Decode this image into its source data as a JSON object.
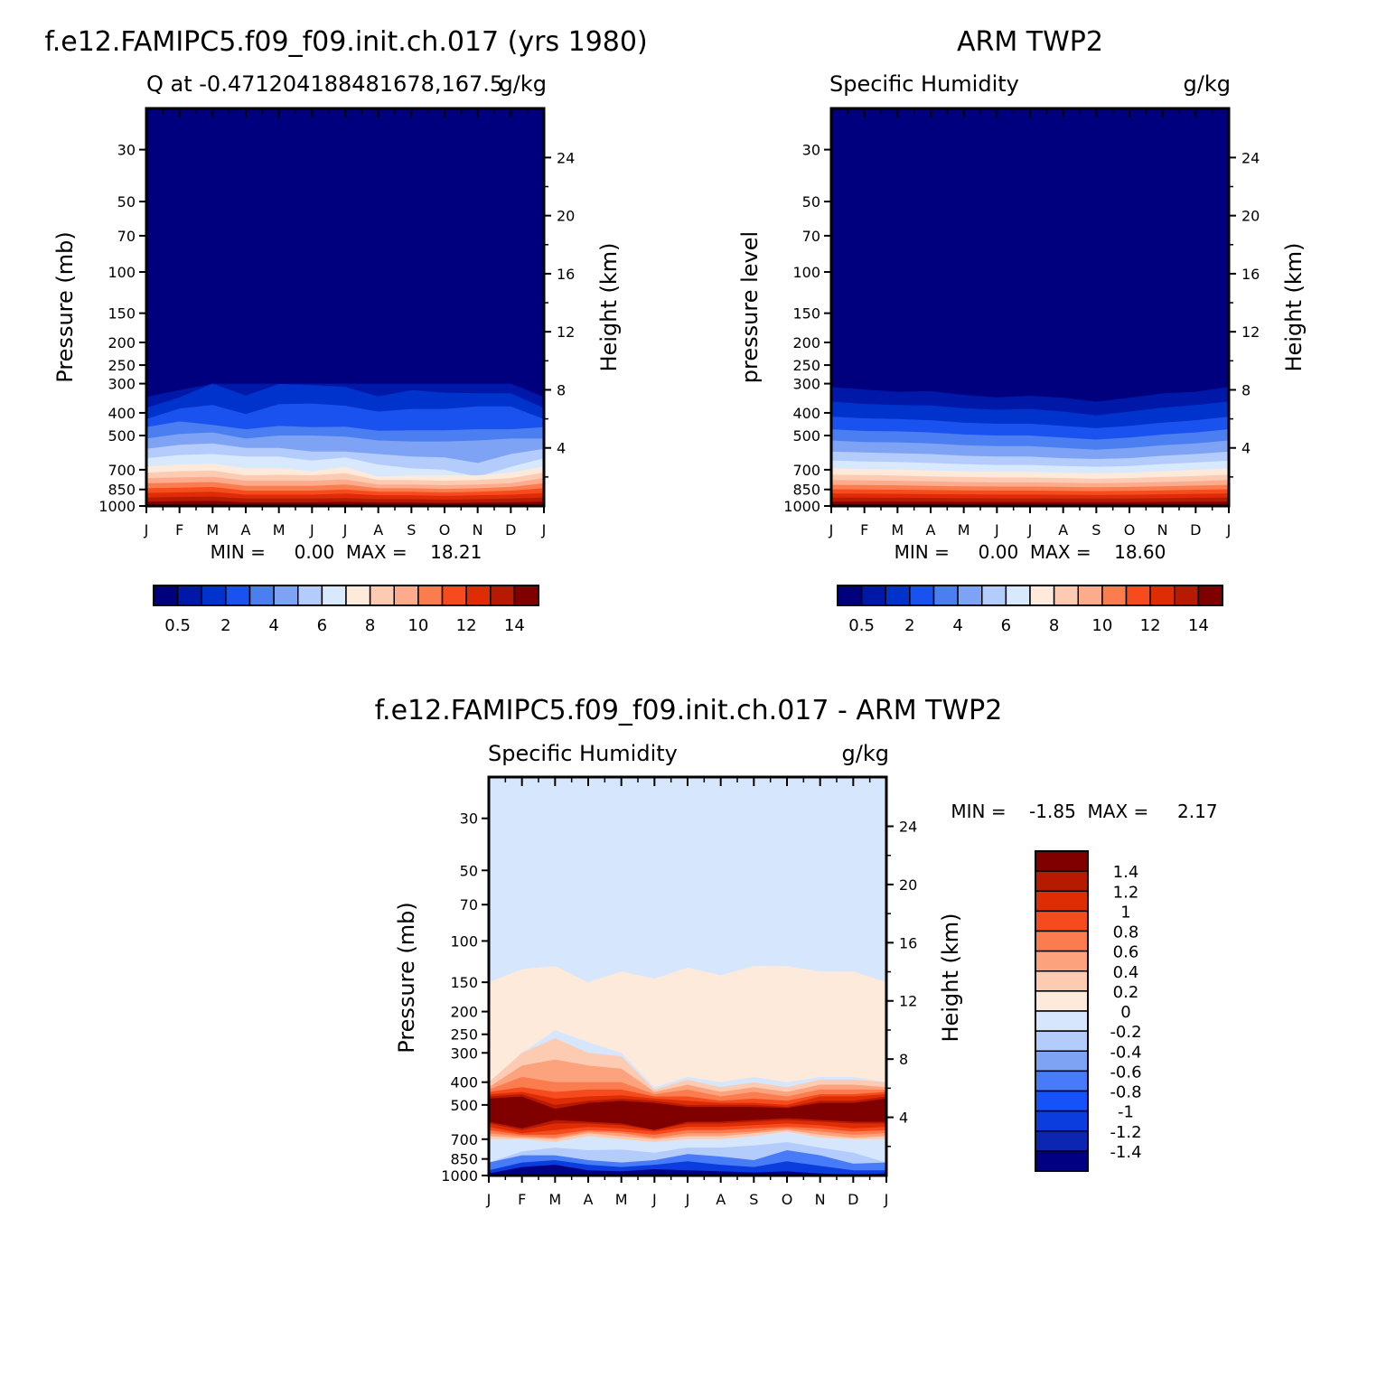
{
  "colors": {
    "levels_seq": [
      "#00007f",
      "#0018a8",
      "#0033cc",
      "#1a52f0",
      "#4b7ef0",
      "#7ea3f5",
      "#b4ccfb",
      "#d8e8fd",
      "#feeadb",
      "#fdcbb2",
      "#fcab8d",
      "#fb7c4e",
      "#f64b1e",
      "#de2c05",
      "#b71a02",
      "#800000"
    ],
    "levels_diff": [
      "#000080",
      "#0c26b2",
      "#0b3cde",
      "#1552fa",
      "#477bf7",
      "#7ea3f5",
      "#b4ccfb",
      "#d6e7fd",
      "#feeadb",
      "#fdcbb2",
      "#fca27d",
      "#fb7c4e",
      "#f64b1e",
      "#de2c05",
      "#b71a02",
      "#800000"
    ]
  },
  "panel_left": {
    "title": "f.e12.FAMIPC5.f09_f09.init.ch.017 (yrs 1980)",
    "subtitle_left": "Q at -0.471204188481678,167.5",
    "subtitle_right": "g/kg",
    "ylabel": "Pressure (mb)",
    "ylabel_right": "Height (km)",
    "stats": "MIN =     0.00  MAX =    18.21"
  },
  "panel_right": {
    "title": "ARM TWP2",
    "subtitle_left": "Specific Humidity",
    "subtitle_right": "g/kg",
    "ylabel": "pressure level",
    "ylabel_right": "Height (km)",
    "stats": "MIN =     0.00  MAX =    18.60"
  },
  "panel_diff": {
    "title": "f.e12.FAMIPC5.f09_f09.init.ch.017 - ARM TWP2",
    "subtitle_left": "Specific Humidity",
    "subtitle_right": "g/kg",
    "ylabel": "Pressure (mb)",
    "ylabel_right": "Height (km)",
    "stats": "MIN =    -1.85  MAX =     2.17"
  },
  "chart_data": [
    {
      "type": "heatmap",
      "title": "f.e12.FAMIPC5.f09_f09.init.ch.017 (yrs 1980)",
      "subtitle": "Q at -0.471204188481678,167.5",
      "units": "g/kg",
      "x": [
        "J",
        "F",
        "M",
        "A",
        "M",
        "J",
        "J",
        "A",
        "S",
        "O",
        "N",
        "D",
        "J"
      ],
      "pressure_ticks": [
        30,
        50,
        70,
        100,
        150,
        200,
        250,
        300,
        400,
        500,
        700,
        850,
        1000
      ],
      "height_ticks_km": [
        4,
        8,
        12,
        16,
        20,
        24
      ],
      "ylim_mb": [
        20,
        1000
      ],
      "ylabel": "Pressure (mb)",
      "ylabel_right": "Height (km)",
      "levels": [
        0.5,
        1,
        2,
        3,
        4,
        5,
        6,
        7,
        8,
        9,
        10,
        11,
        12,
        13,
        14
      ],
      "colorbar_labels": [
        "0.5",
        "2",
        "4",
        "6",
        "8",
        "10",
        "12",
        "14"
      ],
      "min": 0.0,
      "max": 18.21,
      "contour_pressure_mb": [
        [
          342,
          320,
          300,
          300,
          300,
          300,
          300,
          300,
          300,
          300,
          300,
          300,
          342
        ],
        [
          381,
          343,
          300,
          337,
          301,
          304,
          310,
          340,
          320,
          328,
          330,
          330,
          381
        ],
        [
          425,
          383,
          370,
          405,
          367,
          365,
          373,
          395,
          385,
          385,
          375,
          375,
          425
        ],
        [
          460,
          435,
          450,
          470,
          455,
          460,
          458,
          477,
          475,
          475,
          470,
          470,
          460
        ],
        [
          515,
          492,
          485,
          515,
          500,
          500,
          505,
          525,
          530,
          530,
          525,
          515,
          515
        ],
        [
          570,
          548,
          540,
          565,
          565,
          585,
          585,
          600,
          615,
          620,
          655,
          600,
          570
        ],
        [
          625,
          605,
          600,
          615,
          615,
          640,
          620,
          665,
          690,
          700,
          750,
          680,
          625
        ],
        [
          678,
          665,
          660,
          690,
          690,
          710,
          680,
          750,
          740,
          740,
          740,
          720,
          678
        ],
        [
          720,
          710,
          705,
          740,
          735,
          740,
          725,
          775,
          775,
          780,
          775,
          760,
          720
        ],
        [
          760,
          755,
          750,
          780,
          780,
          780,
          770,
          810,
          810,
          815,
          810,
          800,
          760
        ],
        [
          800,
          795,
          790,
          820,
          820,
          820,
          810,
          840,
          840,
          845,
          840,
          830,
          800
        ],
        [
          840,
          835,
          830,
          860,
          860,
          860,
          850,
          870,
          870,
          875,
          870,
          860,
          840
        ],
        [
          880,
          875,
          870,
          895,
          895,
          895,
          885,
          900,
          900,
          905,
          900,
          895,
          880
        ],
        [
          920,
          915,
          912,
          930,
          930,
          930,
          925,
          935,
          935,
          940,
          935,
          930,
          920
        ],
        [
          958,
          955,
          952,
          965,
          965,
          965,
          960,
          968,
          968,
          970,
          968,
          965,
          958
        ]
      ]
    },
    {
      "type": "heatmap",
      "title": "ARM TWP2",
      "subtitle": "Specific Humidity",
      "units": "g/kg",
      "x": [
        "J",
        "F",
        "M",
        "A",
        "M",
        "J",
        "J",
        "A",
        "S",
        "O",
        "N",
        "D",
        "J"
      ],
      "pressure_ticks": [
        30,
        50,
        70,
        100,
        150,
        200,
        250,
        300,
        400,
        500,
        700,
        850,
        1000
      ],
      "height_ticks_km": [
        4,
        8,
        12,
        16,
        20,
        24
      ],
      "ylim_mb": [
        20,
        1000
      ],
      "ylabel": "pressure level",
      "ylabel_right": "Height (km)",
      "levels": [
        0.5,
        1,
        2,
        3,
        4,
        5,
        6,
        7,
        8,
        9,
        10,
        11,
        12,
        13,
        14
      ],
      "colorbar_labels": [
        "0.5",
        "2",
        "4",
        "6",
        "8",
        "10",
        "12",
        "14"
      ],
      "min": 0.0,
      "max": 18.6,
      "contour_pressure_mb": [
        [
          310,
          318,
          325,
          323,
          335,
          343,
          338,
          345,
          358,
          345,
          330,
          325,
          310
        ],
        [
          358,
          366,
          370,
          372,
          382,
          388,
          385,
          395,
          410,
          395,
          380,
          370,
          358
        ],
        [
          415,
          422,
          425,
          430,
          440,
          445,
          445,
          455,
          465,
          455,
          440,
          430,
          415
        ],
        [
          470,
          478,
          480,
          485,
          495,
          500,
          500,
          510,
          520,
          510,
          495,
          485,
          470
        ],
        [
          525,
          533,
          535,
          540,
          550,
          555,
          555,
          565,
          575,
          565,
          550,
          540,
          525
        ],
        [
          585,
          590,
          595,
          600,
          610,
          615,
          615,
          625,
          630,
          625,
          610,
          600,
          585
        ],
        [
          640,
          645,
          648,
          655,
          662,
          668,
          668,
          675,
          680,
          675,
          662,
          652,
          640
        ],
        [
          690,
          695,
          698,
          705,
          710,
          715,
          715,
          720,
          725,
          720,
          710,
          700,
          690
        ],
        [
          735,
          738,
          742,
          748,
          752,
          756,
          756,
          760,
          765,
          760,
          752,
          745,
          735
        ],
        [
          775,
          778,
          780,
          785,
          790,
          793,
          793,
          796,
          800,
          796,
          790,
          784,
          775
        ],
        [
          812,
          814,
          816,
          820,
          824,
          826,
          826,
          829,
          832,
          829,
          824,
          818,
          812
        ],
        [
          848,
          850,
          852,
          855,
          858,
          860,
          860,
          862,
          864,
          862,
          858,
          853,
          848
        ],
        [
          885,
          886,
          888,
          890,
          892,
          894,
          894,
          896,
          898,
          896,
          892,
          888,
          885
        ],
        [
          920,
          921,
          922,
          924,
          926,
          928,
          928,
          929,
          930,
          929,
          926,
          922,
          920
        ],
        [
          958,
          958,
          959,
          960,
          961,
          962,
          962,
          963,
          963,
          963,
          961,
          960,
          958
        ]
      ]
    },
    {
      "type": "heatmap",
      "title": "f.e12.FAMIPC5.f09_f09.init.ch.017 - ARM TWP2",
      "subtitle": "Specific Humidity",
      "units": "g/kg",
      "x": [
        "J",
        "F",
        "M",
        "A",
        "M",
        "J",
        "J",
        "A",
        "S",
        "O",
        "N",
        "D",
        "J"
      ],
      "pressure_ticks": [
        30,
        50,
        70,
        100,
        150,
        200,
        250,
        300,
        400,
        500,
        700,
        850,
        1000
      ],
      "height_ticks_km": [
        4,
        8,
        12,
        16,
        20,
        24
      ],
      "ylim_mb": [
        20,
        1000
      ],
      "ylabel": "Pressure (mb)",
      "ylabel_right": "Height (km)",
      "levels": [
        -1.4,
        -1.2,
        -1,
        -0.8,
        -0.6,
        -0.4,
        -0.2,
        0,
        0.2,
        0.4,
        0.6,
        0.8,
        1,
        1.2,
        1.4
      ],
      "colorbar_labels": [
        "1.4",
        "1.2",
        "1",
        "0.8",
        "0.6",
        "0.4",
        "0.2",
        "0",
        "-0.2",
        "-0.4",
        "-0.6",
        "-0.8",
        "-1",
        "-1.2",
        "-1.4"
      ],
      "min": -1.85,
      "max": 2.17,
      "layers": [
        {
          "level": 0.0,
          "sign": "positive",
          "top_mb": [
            150,
            132,
            128,
            150,
            135,
            145,
            130,
            140,
            128,
            128,
            135,
            135,
            150
          ],
          "bottom_mb": [
            400,
            300,
            240,
            270,
            300,
            420,
            380,
            400,
            380,
            400,
            380,
            380,
            400
          ]
        },
        {
          "level": 0.2,
          "top_mb": [
            400,
            300,
            260,
            300,
            310,
            430,
            390,
            420,
            400,
            420,
            390,
            390,
            400
          ],
          "bottom_mb": [
            700,
            700,
            720,
            680,
            700,
            720,
            700,
            700,
            680,
            650,
            690,
            700,
            700
          ]
        },
        {
          "level": 0.4,
          "top_mb": [
            420,
            340,
            320,
            340,
            350,
            440,
            410,
            440,
            420,
            440,
            410,
            410,
            420
          ],
          "bottom_mb": [
            680,
            690,
            700,
            660,
            680,
            700,
            680,
            680,
            660,
            640,
            670,
            690,
            680
          ]
        },
        {
          "level": 0.6,
          "top_mb": [
            430,
            380,
            400,
            400,
            400,
            450,
            430,
            460,
            440,
            460,
            430,
            430,
            430
          ],
          "bottom_mb": [
            660,
            680,
            690,
            650,
            660,
            690,
            660,
            660,
            650,
            630,
            650,
            670,
            660
          ]
        },
        {
          "level": 0.8,
          "top_mb": [
            440,
            420,
            440,
            430,
            430,
            460,
            460,
            480,
            470,
            480,
            450,
            450,
            440
          ],
          "bottom_mb": [
            640,
            670,
            670,
            640,
            650,
            670,
            640,
            640,
            630,
            620,
            630,
            650,
            640
          ]
        },
        {
          "level": 1.0,
          "top_mb": [
            450,
            440,
            470,
            460,
            455,
            470,
            480,
            490,
            490,
            500,
            460,
            460,
            450
          ],
          "bottom_mb": [
            620,
            660,
            640,
            620,
            630,
            650,
            620,
            620,
            610,
            600,
            610,
            630,
            620
          ]
        },
        {
          "level": 1.2,
          "top_mb": [
            460,
            450,
            500,
            480,
            470,
            480,
            500,
            500,
            500,
            510,
            480,
            480,
            460
          ],
          "bottom_mb": [
            600,
            640,
            600,
            600,
            610,
            640,
            600,
            600,
            590,
            580,
            590,
            600,
            600
          ]
        },
        {
          "level": 1.4,
          "top_mb": [
            470,
            460,
            520,
            490,
            480,
            490,
            510,
            510,
            510,
            515,
            490,
            490,
            470
          ],
          "bottom_mb": [
            590,
            630,
            580,
            590,
            600,
            640,
            590,
            590,
            580,
            570,
            580,
            590,
            590
          ]
        },
        {
          "level": -0.2,
          "top_mb": [
            880,
            790,
            760,
            780,
            775,
            800,
            760,
            760,
            745,
            720,
            760,
            800,
            880
          ],
          "bottom_mb": [
            1000,
            1000,
            1000,
            1000,
            1000,
            1000,
            1000,
            1000,
            1000,
            1000,
            1000,
            1000,
            1000
          ]
        },
        {
          "level": -0.6,
          "top_mb": [
            880,
            820,
            820,
            860,
            880,
            860,
            810,
            830,
            860,
            780,
            820,
            890,
            880
          ],
          "bottom_mb": [
            1000,
            1000,
            1000,
            1000,
            1000,
            1000,
            1000,
            1000,
            1000,
            1000,
            1000,
            1000,
            1000
          ]
        },
        {
          "level": -1.0,
          "top_mb": [
            950,
            880,
            860,
            900,
            920,
            900,
            870,
            900,
            920,
            870,
            910,
            950,
            950
          ],
          "bottom_mb": [
            1000,
            1000,
            1000,
            1000,
            1000,
            1000,
            1000,
            1000,
            1000,
            1000,
            1000,
            1000,
            1000
          ]
        },
        {
          "level": -1.4,
          "top_mb": [
            980,
            920,
            900,
            950,
            960,
            940,
            950,
            960,
            970,
            960,
            980,
            990,
            980
          ],
          "bottom_mb": [
            1000,
            1000,
            1000,
            1000,
            1000,
            1000,
            1000,
            1000,
            1000,
            1000,
            1000,
            1000,
            1000
          ]
        }
      ]
    }
  ]
}
